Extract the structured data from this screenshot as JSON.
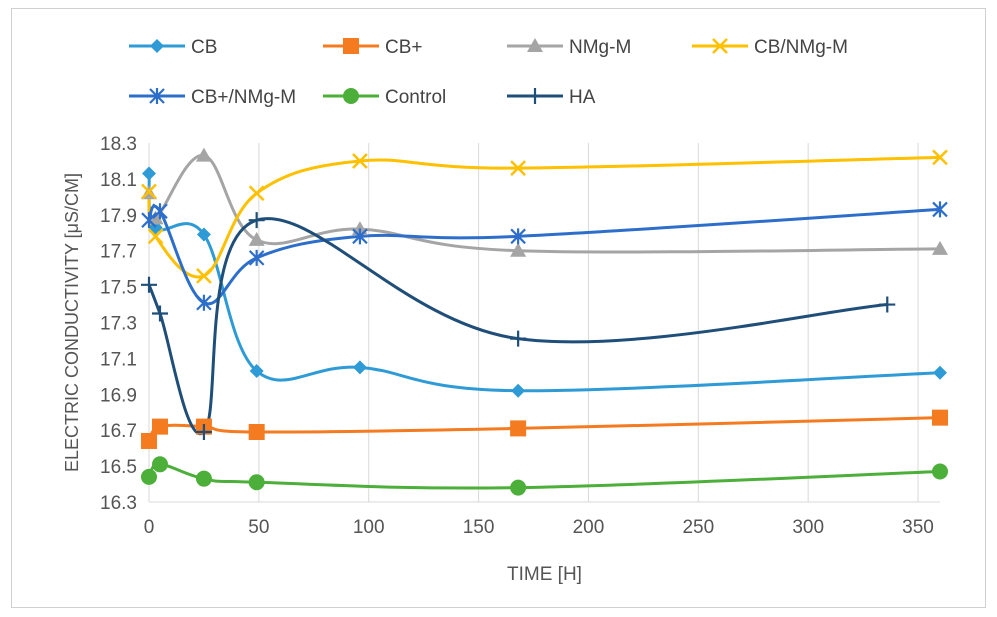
{
  "chart_data": {
    "type": "line",
    "title": "",
    "xlabel": "TIME [H]",
    "ylabel": "ELECTRIC CONDUCTIVITY [μS/CM]",
    "xlim": [
      0,
      360
    ],
    "ylim": [
      16.3,
      18.3
    ],
    "x_ticks": [
      "0",
      "50",
      "100",
      "150",
      "200",
      "250",
      "300",
      "350"
    ],
    "y_ticks": [
      "16.3",
      "16.5",
      "16.7",
      "16.9",
      "17.1",
      "17.3",
      "17.5",
      "17.7",
      "17.9",
      "18.1",
      "18.3"
    ],
    "grid": "vertical",
    "legend_position": "top",
    "series": [
      {
        "name": "CB",
        "color": "#2E9BD6",
        "marker": "diamond",
        "x": [
          0,
          3,
          25,
          49,
          96,
          168,
          360
        ],
        "y": [
          18.13,
          17.83,
          17.79,
          17.03,
          17.05,
          16.92,
          17.02
        ]
      },
      {
        "name": "CB+",
        "color": "#F47B20",
        "marker": "square",
        "x": [
          0,
          5,
          25,
          49,
          168,
          360
        ],
        "y": [
          16.64,
          16.72,
          16.72,
          16.69,
          16.71,
          16.77
        ]
      },
      {
        "name": "NMg-M",
        "color": "#A5A5A5",
        "marker": "triangle",
        "x": [
          0,
          3,
          25,
          49,
          96,
          168,
          360
        ],
        "y": [
          18.02,
          17.88,
          18.23,
          17.76,
          17.82,
          17.7,
          17.71
        ]
      },
      {
        "name": "CB/NMg-M",
        "color": "#FFC000",
        "marker": "x",
        "x": [
          0,
          3,
          25,
          49,
          96,
          168,
          360
        ],
        "y": [
          18.03,
          17.78,
          17.56,
          18.02,
          18.2,
          18.16,
          18.22
        ]
      },
      {
        "name": "CB+/NMg-M",
        "color": "#2D6ECB",
        "marker": "star",
        "x": [
          0,
          5,
          25,
          49,
          96,
          168,
          360
        ],
        "y": [
          17.87,
          17.92,
          17.41,
          17.66,
          17.78,
          17.78,
          17.93
        ]
      },
      {
        "name": "Control",
        "color": "#4CAF3A",
        "marker": "circle",
        "x": [
          0,
          5,
          25,
          49,
          168,
          360
        ],
        "y": [
          16.44,
          16.51,
          16.43,
          16.41,
          16.38,
          16.47
        ]
      },
      {
        "name": "HA",
        "color": "#1F4E79",
        "marker": "plus",
        "x": [
          0,
          5,
          25,
          49,
          168,
          336
        ],
        "y": [
          17.51,
          17.35,
          16.69,
          17.87,
          17.21,
          17.4
        ]
      }
    ]
  }
}
